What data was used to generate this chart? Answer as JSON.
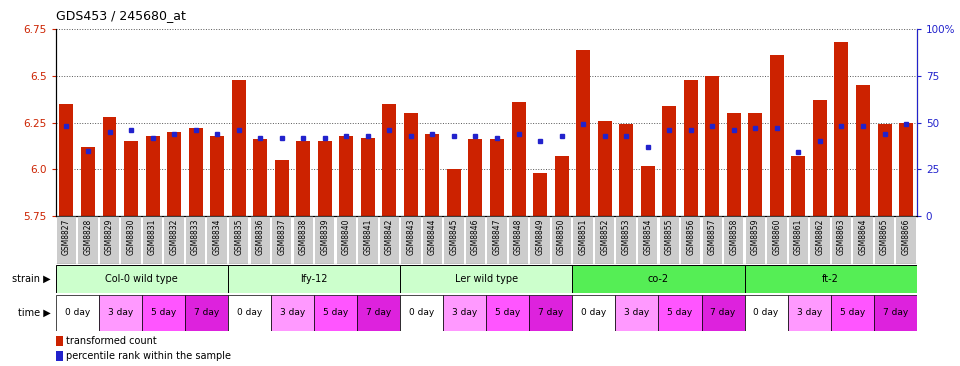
{
  "title": "GDS453 / 245680_at",
  "samples": [
    "GSM8827",
    "GSM8828",
    "GSM8829",
    "GSM8830",
    "GSM8831",
    "GSM8832",
    "GSM8833",
    "GSM8834",
    "GSM8835",
    "GSM8836",
    "GSM8837",
    "GSM8838",
    "GSM8839",
    "GSM8840",
    "GSM8841",
    "GSM8842",
    "GSM8843",
    "GSM8844",
    "GSM8845",
    "GSM8846",
    "GSM8847",
    "GSM8848",
    "GSM8849",
    "GSM8850",
    "GSM8851",
    "GSM8852",
    "GSM8853",
    "GSM8854",
    "GSM8855",
    "GSM8856",
    "GSM8857",
    "GSM8858",
    "GSM8859",
    "GSM8860",
    "GSM8861",
    "GSM8862",
    "GSM8863",
    "GSM8864",
    "GSM8865",
    "GSM8866"
  ],
  "transformed_counts": [
    6.35,
    6.12,
    6.28,
    6.15,
    6.18,
    6.2,
    6.22,
    6.18,
    6.48,
    6.16,
    6.05,
    6.15,
    6.15,
    6.18,
    6.17,
    6.35,
    6.3,
    6.19,
    6.0,
    6.16,
    6.16,
    6.36,
    5.98,
    6.07,
    6.64,
    6.26,
    6.24,
    6.02,
    6.34,
    6.48,
    6.5,
    6.3,
    6.3,
    6.61,
    6.07,
    6.37,
    6.68,
    6.45,
    6.24,
    6.25
  ],
  "percentile_ranks": [
    48,
    35,
    45,
    46,
    42,
    44,
    46,
    44,
    46,
    42,
    42,
    42,
    42,
    43,
    43,
    46,
    43,
    44,
    43,
    43,
    42,
    44,
    40,
    43,
    49,
    43,
    43,
    37,
    46,
    46,
    48,
    46,
    47,
    47,
    34,
    40,
    48,
    48,
    44,
    49
  ],
  "ylim_left": [
    5.75,
    6.75
  ],
  "ylim_right": [
    0,
    100
  ],
  "yticks_left": [
    5.75,
    6.0,
    6.25,
    6.5,
    6.75
  ],
  "yticks_right": [
    0,
    25,
    50,
    75,
    100
  ],
  "ytick_labels_right": [
    "0",
    "25",
    "50",
    "75",
    "100%"
  ],
  "bar_color": "#cc2200",
  "blue_color": "#2222cc",
  "strains": [
    {
      "label": "Col-0 wild type",
      "start": 0,
      "end": 8,
      "color": "#ccffcc"
    },
    {
      "label": "lfy-12",
      "start": 8,
      "end": 16,
      "color": "#ccffcc"
    },
    {
      "label": "Ler wild type",
      "start": 16,
      "end": 24,
      "color": "#ccffcc"
    },
    {
      "label": "co-2",
      "start": 24,
      "end": 32,
      "color": "#55ee55"
    },
    {
      "label": "ft-2",
      "start": 32,
      "end": 40,
      "color": "#55ee55"
    }
  ],
  "time_labels": [
    "0 day",
    "3 day",
    "5 day",
    "7 day"
  ],
  "time_colors": [
    "#ffffff",
    "#ff99ff",
    "#ff55ff",
    "#dd22dd"
  ],
  "grid_color": "#555555",
  "xtick_bg": "#cccccc"
}
